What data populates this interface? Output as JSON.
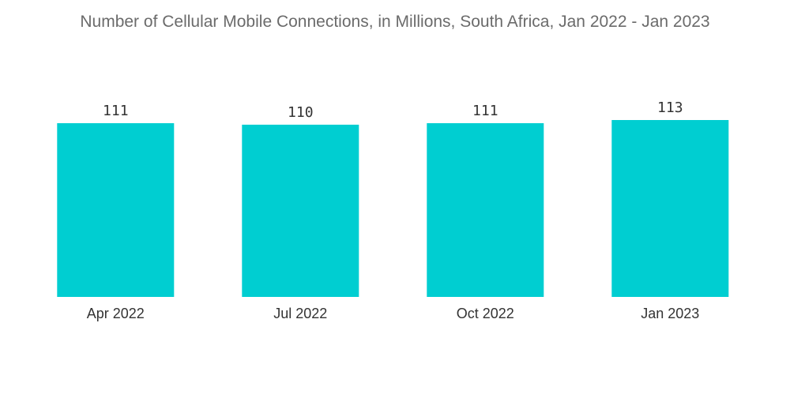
{
  "chart_data": {
    "type": "bar",
    "title": "Number of Cellular Mobile Connections, in Millions, South Africa, Jan 2022 - Jan 2023",
    "xlabel": "",
    "ylabel": "",
    "categories": [
      "Apr 2022",
      "Jul 2022",
      "Oct 2022",
      "Jan 2023"
    ],
    "values": [
      111,
      110,
      111,
      113
    ],
    "data_labels": [
      "111",
      "110",
      "111",
      "113"
    ],
    "ylim": [
      0,
      113
    ],
    "grid": false,
    "legend": "none",
    "bar_color": "#00CED1"
  }
}
